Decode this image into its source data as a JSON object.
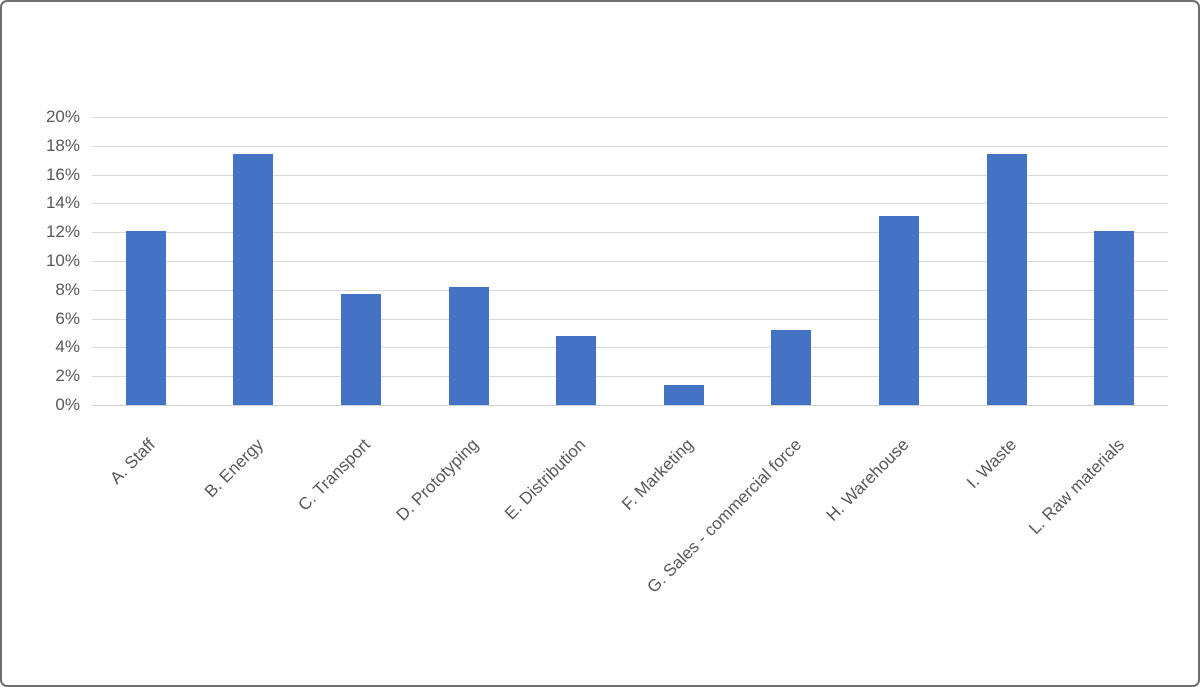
{
  "chart_data": {
    "type": "bar",
    "title": "",
    "xlabel": "",
    "ylabel": "",
    "categories": [
      "A. Staff",
      "B. Energy",
      "C. Transport",
      "D. Prototyping",
      "E. Distribution",
      "F. Marketing",
      "G. Sales - commercial force",
      "H. Warehouse",
      "I. Waste",
      "L. Raw materials"
    ],
    "values": [
      12.1,
      17.4,
      7.7,
      8.2,
      4.8,
      1.4,
      5.2,
      13.1,
      17.4,
      12.1
    ],
    "value_unit": "%",
    "ylim": [
      0,
      20
    ],
    "ytick_step": 2,
    "ytick_labels": [
      "0%",
      "2%",
      "4%",
      "6%",
      "8%",
      "10%",
      "12%",
      "14%",
      "16%",
      "18%",
      "20%"
    ],
    "grid": true,
    "legend": false,
    "x_labels_rotation_deg": -45,
    "colors": {
      "bar": "#4472C4",
      "gridline": "#D9D9D9",
      "axis_line": "#D0D0D0",
      "tick_label": "#595959",
      "background": "#FFFFFF",
      "frame_border": "#6E6E6E"
    }
  }
}
